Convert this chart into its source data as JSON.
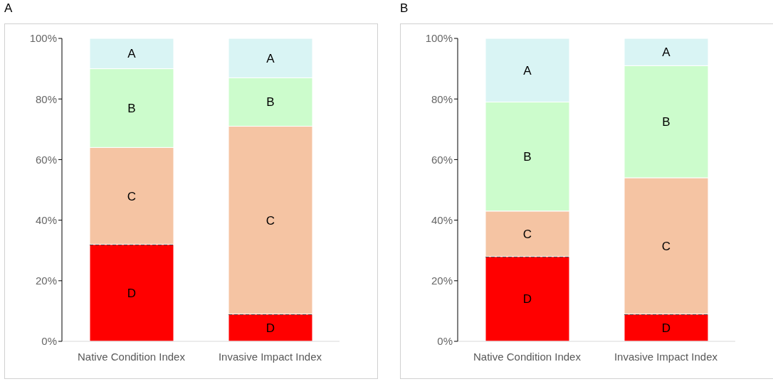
{
  "chart_data": [
    {
      "type": "bar",
      "title": "A",
      "stacked": true,
      "categories": [
        "Native Condition Index",
        "Invasive Impact Index"
      ],
      "ylim": [
        0,
        100
      ],
      "yticks": [
        {
          "value": 0,
          "label": "0%"
        },
        {
          "value": 20,
          "label": "20%"
        },
        {
          "value": 40,
          "label": "40%"
        },
        {
          "value": 60,
          "label": "60%"
        },
        {
          "value": 80,
          "label": "80%"
        },
        {
          "value": 100,
          "label": "100%"
        }
      ],
      "grid": false,
      "legend": false,
      "series": [
        {
          "name": "D",
          "color": "#ff0000",
          "values": [
            32,
            9
          ],
          "line_style": "dashed"
        },
        {
          "name": "C",
          "color": "#f5c4a3",
          "values": [
            32,
            62
          ]
        },
        {
          "name": "B",
          "color": "#ccfccc",
          "values": [
            26,
            16
          ]
        },
        {
          "name": "A",
          "color": "#d9f4f4",
          "values": [
            10,
            13
          ]
        }
      ]
    },
    {
      "type": "bar",
      "title": "B",
      "stacked": true,
      "categories": [
        "Native Condition Index",
        "Invasive Impact Index"
      ],
      "ylim": [
        0,
        100
      ],
      "yticks": [
        {
          "value": 0,
          "label": "0%"
        },
        {
          "value": 20,
          "label": "20%"
        },
        {
          "value": 40,
          "label": "40%"
        },
        {
          "value": 60,
          "label": "60%"
        },
        {
          "value": 80,
          "label": "80%"
        },
        {
          "value": 100,
          "label": "100%"
        }
      ],
      "grid": false,
      "legend": false,
      "series": [
        {
          "name": "D",
          "color": "#ff0000",
          "values": [
            28,
            9
          ],
          "line_style": "dashed"
        },
        {
          "name": "C",
          "color": "#f5c4a3",
          "values": [
            15,
            45
          ]
        },
        {
          "name": "B",
          "color": "#ccfccc",
          "values": [
            36,
            37
          ]
        },
        {
          "name": "A",
          "color": "#d9f4f4",
          "values": [
            21,
            9
          ]
        }
      ]
    }
  ]
}
